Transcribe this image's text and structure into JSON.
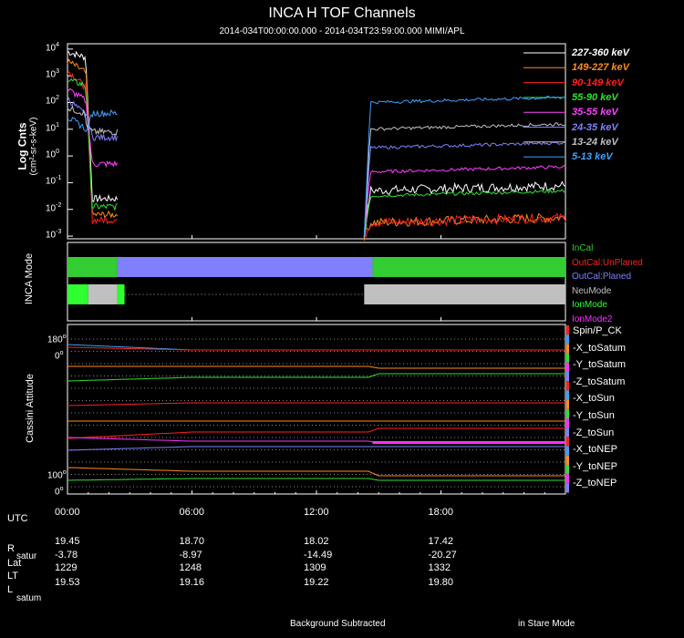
{
  "chart_data": {
    "type": "line",
    "title": "INCA H TOF Channels",
    "subtitle": "2014-034T00:00:00.000 - 2014-034T23:59:00.000 MIMI/APL",
    "panels": {
      "tof": {
        "ylabel_line1": "Log Cnts",
        "ylabel_line2": "(cm²-sr-s-keV)",
        "ytick_labels": [
          {
            "base": "10",
            "exp": "4"
          },
          {
            "base": "10",
            "exp": "3"
          },
          {
            "base": "10",
            "exp": "2"
          },
          {
            "base": "10",
            "exp": "1"
          },
          {
            "base": "10",
            "exp": "0"
          },
          {
            "base": "10",
            "exp": "-1"
          },
          {
            "base": "10",
            "exp": "-2"
          },
          {
            "base": "10",
            "exp": "-3"
          }
        ],
        "ylim_log10": [
          -3.1,
          4.2
        ],
        "series": [
          {
            "name": "227-360 keV",
            "color": "#ffffff",
            "early": -1.6,
            "late": -1.3
          },
          {
            "name": "149-227 keV",
            "color": "#ff8c1a",
            "early": -2.2,
            "late": -2.5
          },
          {
            "name": "90-149 keV",
            "color": "#ff2020",
            "early": -2.4,
            "late": -2.5
          },
          {
            "name": "55-90 keV",
            "color": "#30e030",
            "early": -1.9,
            "late": -1.5
          },
          {
            "name": "35-55 keV",
            "color": "#ff40ff",
            "early": -0.3,
            "late": -0.6
          },
          {
            "name": "24-35 keV",
            "color": "#8080ff",
            "early": 0.7,
            "late": 0.3
          },
          {
            "name": "13-24 keV",
            "color": "#c0c0c0",
            "early": 0.9,
            "late": 1.0
          },
          {
            "name": "5-13 keV",
            "color": "#40a0ff",
            "early": 1.6,
            "late": 2.0
          }
        ]
      },
      "mode": {
        "ylabel": "INCA Mode",
        "legend": [
          {
            "name": "InCal",
            "color": "#33cc33"
          },
          {
            "name": "OutCal:UnPlaned",
            "color": "#ff2020"
          },
          {
            "name": "OutCal:Planed",
            "color": "#8080ff"
          },
          {
            "name": "NeuMode",
            "color": "#c0c0c0"
          },
          {
            "name": "IonMode",
            "color": "#30ff30"
          },
          {
            "name": "IonMode2",
            "color": "#ff30ff"
          }
        ],
        "cal_segments": [
          {
            "start_h": 0.0,
            "end_h": 2.4,
            "state": "InCal"
          },
          {
            "start_h": 2.4,
            "end_h": 14.7,
            "state": "OutCal:Planed"
          },
          {
            "start_h": 14.7,
            "end_h": 24.0,
            "state": "InCal"
          }
        ],
        "sci_segments": [
          {
            "start_h": 0.0,
            "end_h": 1.0,
            "state": "IonMode"
          },
          {
            "start_h": 1.0,
            "end_h": 2.4,
            "state": "NeuMode"
          },
          {
            "start_h": 2.4,
            "end_h": 2.75,
            "state": "IonMode"
          },
          {
            "start_h": 14.3,
            "end_h": 24.0,
            "state": "NeuMode"
          }
        ]
      },
      "attitude": {
        "ylabel": "Cassini Attitude",
        "ytick_top": {
          "value": "180",
          "unit": "o"
        },
        "ytick_zero": {
          "value": "0",
          "unit": "o"
        },
        "ytick_100": {
          "value": "100",
          "unit": "o"
        },
        "ytick_bottom": {
          "value": "0",
          "unit": "o"
        },
        "legend": [
          {
            "name": "Spin/P_CK",
            "color": "#30ff30"
          },
          {
            "name": "-X_toSatum",
            "color": "#40a0ff"
          },
          {
            "name": "-Y_toSatum",
            "color": "#ff8c1a"
          },
          {
            "name": "-Z_toSatum",
            "color": "#30e030"
          },
          {
            "name": "-X_toSun",
            "color": "#ff2020"
          },
          {
            "name": "-Y_toSun",
            "color": "#ff8c1a"
          },
          {
            "name": "-Z_toSun",
            "color": "#ff2020"
          },
          {
            "name": "-X_toNEP",
            "color": "#ff30ff"
          },
          {
            "name": "-Y_toNEP",
            "color": "#8080ff"
          },
          {
            "name": "-Z_toNEP",
            "color": "#ff8c1a"
          }
        ],
        "legend_colors": [
          "#ff2020",
          "#40a0ff",
          "#ff8c1a",
          "#30e030",
          "#ff30ff",
          "#8080ff"
        ]
      }
    },
    "x": {
      "range_hours": [
        0,
        24
      ],
      "tick_labels": [
        "00:00",
        "06:00",
        "12:00",
        "18:00"
      ],
      "tick_hours": [
        0,
        6,
        12,
        18
      ]
    }
  },
  "ephemeris": {
    "utc_label": "UTC",
    "rows": [
      {
        "label": "R",
        "sub": "satur",
        "values": [
          "19.45",
          "18.70",
          "18.02",
          "17.42"
        ]
      },
      {
        "label": "Lat",
        "sub": "",
        "values": [
          "-3.78",
          "-8.97",
          "-14.49",
          "-20.27"
        ]
      },
      {
        "label": "LT",
        "sub": "",
        "values": [
          "1229",
          "1248",
          "1309",
          "1332"
        ]
      },
      {
        "label": "L",
        "sub": "satum",
        "values": [
          "19.53",
          "19.16",
          "19.22",
          "19.80"
        ]
      }
    ],
    "l_label_top": "L",
    "l_label_sub": "satum"
  },
  "footer": {
    "left": "Background Subtracted",
    "right": "in Stare Mode"
  }
}
